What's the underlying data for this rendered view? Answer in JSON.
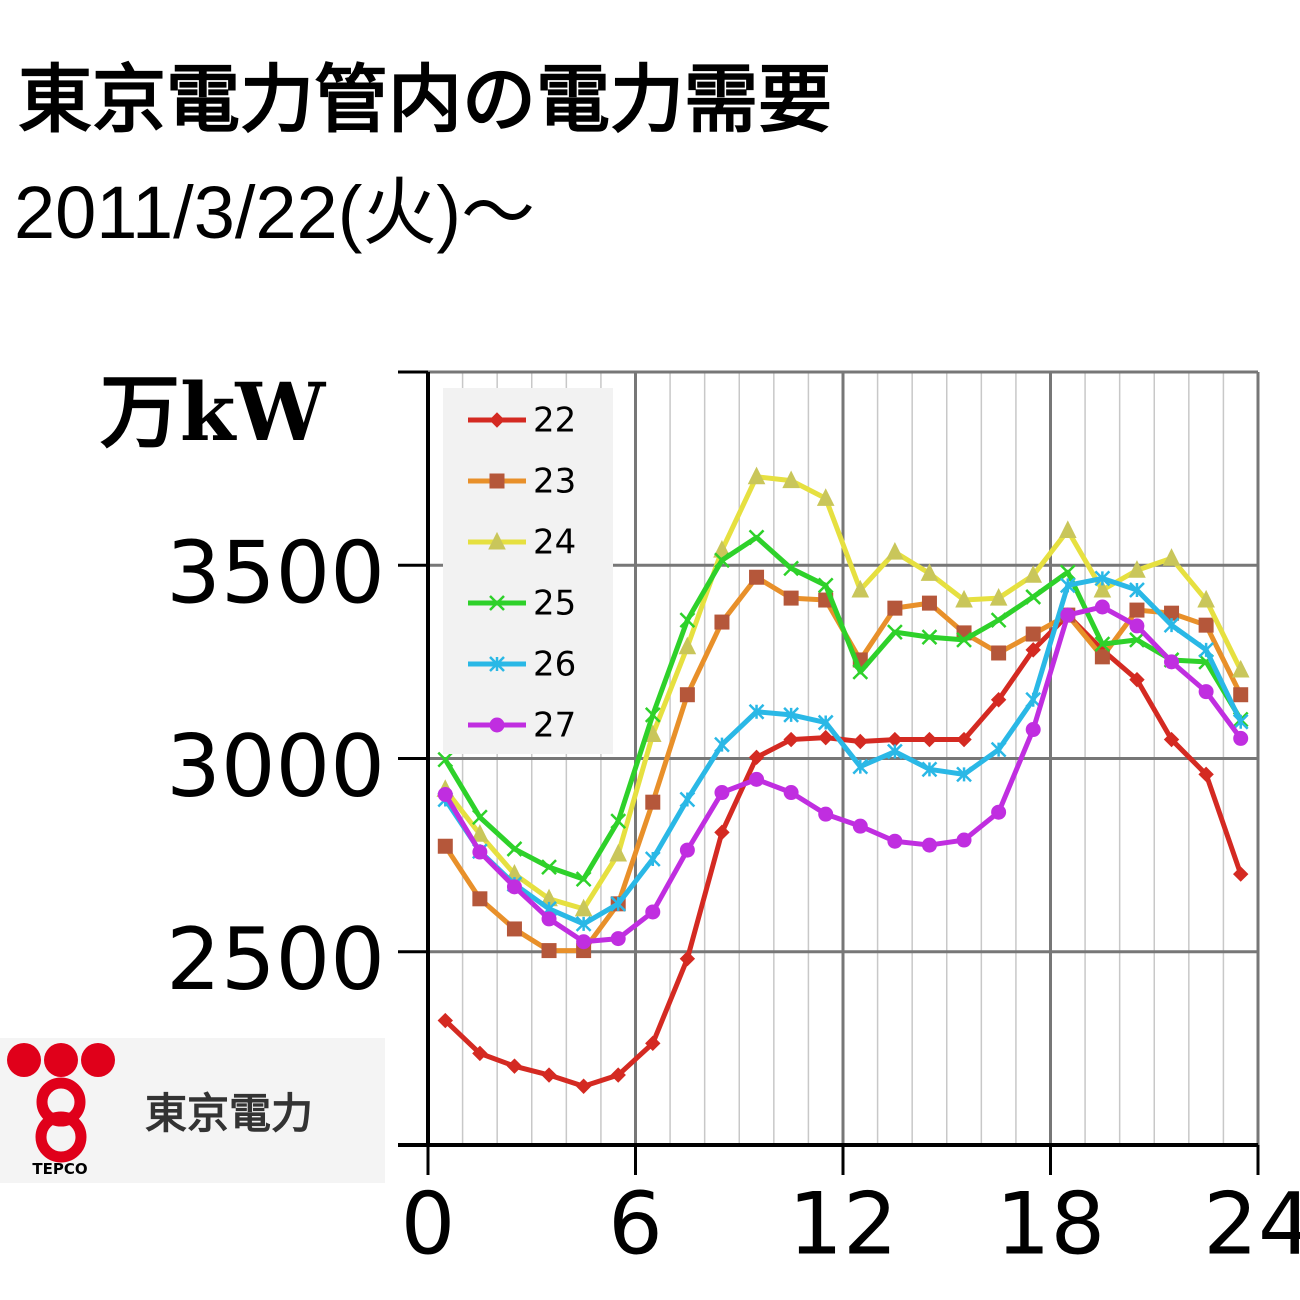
{
  "chart_data": {
    "type": "line",
    "title": "東京電力管内の電力需要",
    "subtitle": "2011/3/22(火)～",
    "y_label": "万kW",
    "x": [
      0.5,
      1.5,
      2.5,
      3.5,
      4.5,
      5.5,
      6.5,
      7.5,
      8.5,
      9.5,
      10.5,
      11.5,
      12.5,
      13.5,
      14.5,
      15.5,
      16.5,
      17.5,
      18.5,
      19.5,
      20.5,
      21.5,
      22.5,
      23.5
    ],
    "xlim": [
      0,
      24
    ],
    "xticks": [
      0,
      6,
      12,
      18,
      24
    ],
    "ylim": [
      2000,
      4000
    ],
    "yticks": [
      2500,
      3000,
      3500
    ],
    "grid": true,
    "legend": "upper left",
    "series": [
      {
        "name": "22",
        "color": "#d42a22",
        "marker": "diamond",
        "values": [
          2322,
          2237,
          2204,
          2181,
          2152,
          2181,
          2263,
          2482,
          2809,
          3003,
          3049,
          3054,
          3044,
          3049,
          3049,
          3049,
          3152,
          3281,
          3371,
          3281,
          3204,
          3049,
          2959,
          2701
        ]
      },
      {
        "name": "23",
        "color": "#e8902a",
        "marker": "square",
        "values": [
          2773,
          2637,
          2559,
          2503,
          2503,
          2624,
          2887,
          3165,
          3353,
          3469,
          3415,
          3410,
          3255,
          3389,
          3402,
          3325,
          3273,
          3322,
          3371,
          3263,
          3384,
          3376,
          3345,
          3165
        ]
      },
      {
        "name": "24",
        "color": "#e6e040",
        "marker": "triangle",
        "values": [
          2920,
          2804,
          2701,
          2637,
          2611,
          2753,
          3062,
          3289,
          3539,
          3729,
          3719,
          3673,
          3436,
          3534,
          3479,
          3410,
          3415,
          3474,
          3590,
          3436,
          3487,
          3518,
          3410,
          3229
        ]
      },
      {
        "name": "25",
        "color": "#2ed12a",
        "marker": "x",
        "values": [
          2997,
          2848,
          2766,
          2719,
          2688,
          2838,
          3113,
          3358,
          3513,
          3572,
          3492,
          3448,
          3224,
          3327,
          3314,
          3307,
          3358,
          3418,
          3482,
          3296,
          3307,
          3255,
          3250,
          3101
        ]
      },
      {
        "name": "26",
        "color": "#2ab8e6",
        "marker": "star",
        "values": [
          2894,
          2760,
          2675,
          2611,
          2572,
          2624,
          2740,
          2894,
          3036,
          3121,
          3113,
          3093,
          2979,
          3018,
          2972,
          2959,
          3023,
          3152,
          3448,
          3466,
          3436,
          3345,
          3281,
          3095
        ]
      },
      {
        "name": "27",
        "color": "#c02ee0",
        "marker": "circle",
        "values": [
          2907,
          2758,
          2668,
          2585,
          2526,
          2534,
          2603,
          2763,
          2912,
          2946,
          2912,
          2856,
          2825,
          2786,
          2776,
          2789,
          2861,
          3075,
          3371,
          3392,
          3343,
          3250,
          3173,
          3052
        ]
      }
    ]
  },
  "logo": {
    "name": "東京電力",
    "abbr": "TEPCO"
  }
}
